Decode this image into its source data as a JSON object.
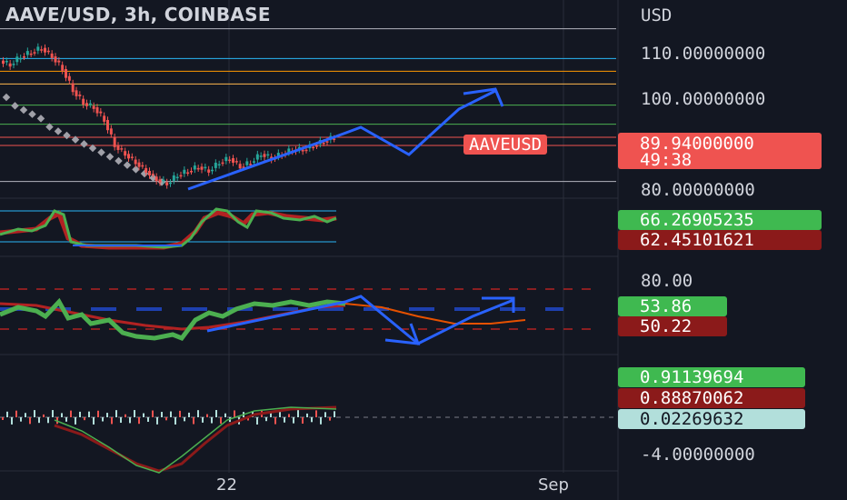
{
  "header": {
    "title": "AAVE/USD, 3h, COINBASE"
  },
  "price_axis": {
    "currency": "USD",
    "ticks": [
      "110.00000000",
      "100.00000000",
      "80.00000000"
    ]
  },
  "symbol_label": "AAVEUSD",
  "last_price": {
    "value": "89.94000000",
    "countdown": "49:38",
    "color": "#ef5350"
  },
  "rsi_panel": {
    "values": [
      "66.26905235",
      "62.45101621"
    ],
    "colors": [
      "#3fb950",
      "#8b1a1a"
    ]
  },
  "stoch_panel": {
    "tick": "80.00",
    "values": [
      "53.86",
      "50.22"
    ],
    "colors": [
      "#3fb950",
      "#8b1a1a"
    ]
  },
  "macd_panel": {
    "values": [
      "0.91139694",
      "0.88870062",
      "0.02269632"
    ],
    "colors": [
      "#3fb950",
      "#8b1a1a",
      "#b2dfdb"
    ],
    "tick": "-4.00000000"
  },
  "time_axis": [
    "22",
    "Sep"
  ],
  "colors": {
    "background": "#131722",
    "up": "#26a69a",
    "down": "#ef5350",
    "projection": "#2962ff",
    "stoch_green": "#4caf50",
    "stoch_red": "#b22222"
  },
  "chart_data": {
    "type": "candlestick",
    "title": "AAVE/USD, 3h, COINBASE",
    "ylim": [
      76,
      118
    ],
    "price_points": [
      108,
      107,
      109,
      110,
      111,
      109,
      106,
      101,
      98,
      97,
      94,
      88,
      86,
      84,
      82,
      80,
      79,
      81,
      82,
      83,
      82,
      84,
      85,
      83,
      84,
      86,
      85,
      86,
      87,
      87,
      88,
      89,
      89.94
    ],
    "horizontal_levels": [
      {
        "value": 115.5,
        "color": "#b2b5be"
      },
      {
        "value": 108.5,
        "color": "#29b6f6"
      },
      {
        "value": 105.5,
        "color": "#ff9800"
      },
      {
        "value": 102.5,
        "color": "#ffb74d"
      },
      {
        "value": 97.5,
        "color": "#4caf50"
      },
      {
        "value": 93,
        "color": "#4caf50"
      },
      {
        "value": 89.94,
        "color": "#ef5350"
      },
      {
        "value": 88,
        "color": "#ef5350"
      },
      {
        "value": 79.5,
        "color": "#b2b5be"
      }
    ],
    "last_price": 89.94
  }
}
